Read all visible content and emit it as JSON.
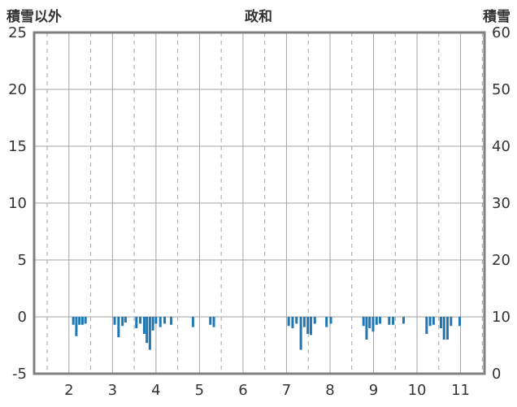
{
  "chart_data": {
    "type": "bar",
    "title": "政和",
    "left_axis": {
      "label": "積雪以外",
      "min": -5,
      "max": 25,
      "ticks": [
        25,
        20,
        15,
        10,
        5,
        0,
        -5
      ]
    },
    "right_axis": {
      "label": "積雪",
      "min": 0,
      "max": 60,
      "ticks": [
        60,
        50,
        40,
        30,
        20,
        10,
        0
      ]
    },
    "x_axis": {
      "min": 1.2,
      "max": 11.55,
      "ticks": [
        2,
        3,
        4,
        5,
        6,
        7,
        8,
        9,
        10,
        11
      ],
      "minor_ticks": [
        1.5,
        2.5,
        3.5,
        4.5,
        5.5,
        6.5,
        7.5,
        8.5,
        9.5,
        10.5,
        11.5
      ]
    },
    "grid": {
      "horizontal": "solid",
      "vertical_major": "solid",
      "vertical_minor": "dashed"
    },
    "bars": [
      {
        "x": 2.1,
        "v": -0.7
      },
      {
        "x": 2.17,
        "v": -1.7
      },
      {
        "x": 2.24,
        "v": -0.7
      },
      {
        "x": 2.31,
        "v": -0.7
      },
      {
        "x": 2.38,
        "v": -0.6
      },
      {
        "x": 3.05,
        "v": -0.7
      },
      {
        "x": 3.14,
        "v": -1.8
      },
      {
        "x": 3.23,
        "v": -0.8
      },
      {
        "x": 3.3,
        "v": -0.5
      },
      {
        "x": 3.55,
        "v": -1.0
      },
      {
        "x": 3.64,
        "v": -0.6
      },
      {
        "x": 3.73,
        "v": -1.5
      },
      {
        "x": 3.79,
        "v": -2.3
      },
      {
        "x": 3.86,
        "v": -2.9
      },
      {
        "x": 3.93,
        "v": -1.2
      },
      {
        "x": 4.0,
        "v": -0.6
      },
      {
        "x": 4.1,
        "v": -0.9
      },
      {
        "x": 4.2,
        "v": -0.6
      },
      {
        "x": 4.35,
        "v": -0.7
      },
      {
        "x": 4.85,
        "v": -0.9
      },
      {
        "x": 5.25,
        "v": -0.7
      },
      {
        "x": 5.33,
        "v": -0.9
      },
      {
        "x": 7.05,
        "v": -0.8
      },
      {
        "x": 7.14,
        "v": -1.0
      },
      {
        "x": 7.23,
        "v": -0.6
      },
      {
        "x": 7.33,
        "v": -2.9
      },
      {
        "x": 7.41,
        "v": -0.9
      },
      {
        "x": 7.49,
        "v": -1.5
      },
      {
        "x": 7.56,
        "v": -1.6
      },
      {
        "x": 7.65,
        "v": -0.6
      },
      {
        "x": 7.92,
        "v": -0.9
      },
      {
        "x": 8.02,
        "v": -0.6
      },
      {
        "x": 8.77,
        "v": -0.8
      },
      {
        "x": 8.84,
        "v": -2.0
      },
      {
        "x": 8.91,
        "v": -1.0
      },
      {
        "x": 8.99,
        "v": -1.3
      },
      {
        "x": 9.07,
        "v": -0.7
      },
      {
        "x": 9.15,
        "v": -0.6
      },
      {
        "x": 9.36,
        "v": -0.7
      },
      {
        "x": 9.45,
        "v": -0.7
      },
      {
        "x": 9.69,
        "v": -0.6
      },
      {
        "x": 10.22,
        "v": -1.5
      },
      {
        "x": 10.3,
        "v": -0.8
      },
      {
        "x": 10.38,
        "v": -0.7
      },
      {
        "x": 10.55,
        "v": -1.0
      },
      {
        "x": 10.62,
        "v": -2.0
      },
      {
        "x": 10.7,
        "v": -2.0
      },
      {
        "x": 10.78,
        "v": -0.8
      },
      {
        "x": 10.98,
        "v": -0.8
      }
    ],
    "colors": {
      "bar": "#1f77b4",
      "frame": "#808080",
      "grid": "#a3a3a3",
      "text": "#333333"
    }
  }
}
